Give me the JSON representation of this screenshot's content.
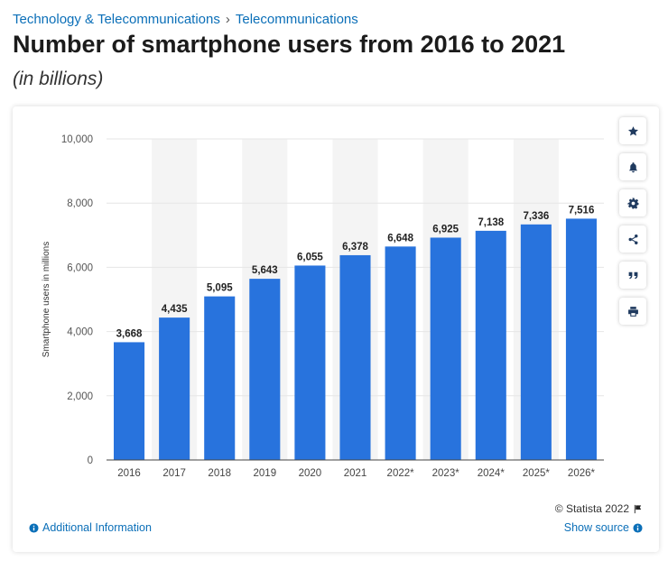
{
  "breadcrumb": {
    "items": [
      "Technology & Telecommunications",
      "Telecommunications"
    ],
    "separator": "›"
  },
  "header": {
    "title": "Number of smartphone users from 2016 to 2021",
    "subtitle": "(in billions)"
  },
  "toolbar": {
    "icons": [
      "star-icon",
      "bell-icon",
      "gear-icon",
      "share-icon",
      "quote-icon",
      "print-icon"
    ]
  },
  "footer": {
    "copyright": "© Statista 2022",
    "additional_info": "Additional Information",
    "show_source": "Show source"
  },
  "colors": {
    "bar": "#2873dd",
    "link": "#0b6fb8",
    "band": "#f4f4f4",
    "grid": "#e6e6e6"
  },
  "chart_data": {
    "type": "bar",
    "categories": [
      "2016",
      "2017",
      "2018",
      "2019",
      "2020",
      "2021",
      "2022*",
      "2023*",
      "2024*",
      "2025*",
      "2026*"
    ],
    "values": [
      3668,
      4435,
      5095,
      5643,
      6055,
      6378,
      6648,
      6925,
      7138,
      7336,
      7516
    ],
    "value_labels": [
      "3,668",
      "4,435",
      "5,095",
      "5,643",
      "6,055",
      "6,378",
      "6,648",
      "6,925",
      "7,138",
      "7,336",
      "7,516"
    ],
    "ylabel": "Smartphone users in millions",
    "xlabel": "",
    "ylim": [
      0,
      10000
    ],
    "yticks": [
      0,
      2000,
      4000,
      6000,
      8000,
      10000
    ],
    "ytick_labels": [
      "0",
      "2,000",
      "4,000",
      "6,000",
      "8,000",
      "10,000"
    ],
    "grid": true,
    "alternating_bands": true
  }
}
